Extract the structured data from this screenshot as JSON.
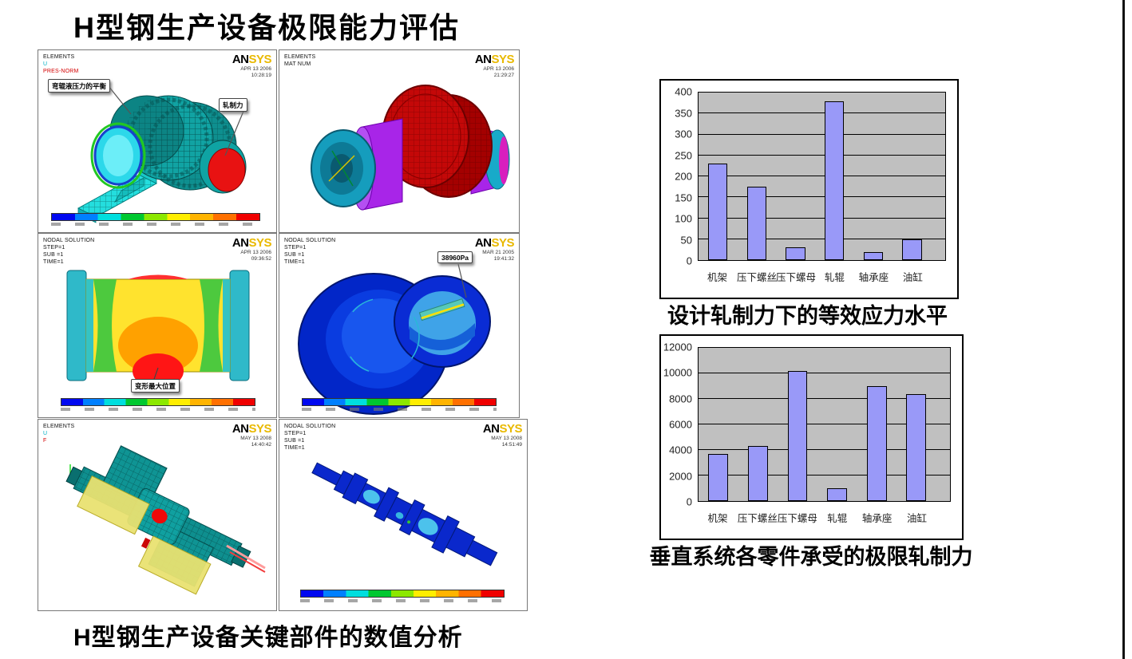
{
  "page": {
    "title": "H型钢生产设备极限能力评估",
    "bottom_caption": "H型钢生产设备关键部件的数值分析"
  },
  "panels": [
    {
      "header_lines": [
        "ELEMENTS",
        "U",
        "PRES-NORM"
      ],
      "logo_an": "AN",
      "logo_sys": "SYS",
      "date": "APR 13 2006",
      "time": "10:28:19",
      "callout_left": "弯辊液压力的平衡",
      "callout_right": "轧制力"
    },
    {
      "header_lines": [
        "ELEMENTS",
        "MAT NUM"
      ],
      "logo_an": "AN",
      "logo_sys": "SYS",
      "date": "APR 13 2006",
      "time": "21:29:27"
    },
    {
      "header_lines": [
        "NODAL SOLUTION",
        "STEP=1",
        "SUB =1",
        "TIME=1"
      ],
      "logo_an": "AN",
      "logo_sys": "SYS",
      "date": "APR 13 2006",
      "time": "09:36:52",
      "callout": "变形最大位置"
    },
    {
      "header_lines": [
        "NODAL SOLUTION",
        "STEP=1",
        "SUB =1",
        "TIME=1"
      ],
      "logo_an": "AN",
      "logo_sys": "SYS",
      "date": "MAR 21 2005",
      "time": "19:41:32",
      "callout": "38960Pa"
    },
    {
      "header_lines": [
        "ELEMENTS",
        "U",
        "F"
      ],
      "logo_an": "AN",
      "logo_sys": "SYS",
      "date": "MAY 13 2008",
      "time": "14:40:42"
    },
    {
      "header_lines": [
        "NODAL SOLUTION",
        "STEP=1",
        "SUB =1",
        "TIME=1"
      ],
      "logo_an": "AN",
      "logo_sys": "SYS",
      "date": "MAY 13 2008",
      "time": "14:51:49"
    }
  ],
  "chart_data": [
    {
      "type": "bar",
      "caption": "设计轧制力下的等效应力水平",
      "categories": [
        "机架",
        "压下螺丝",
        "压下螺母",
        "轧辊",
        "轴承座",
        "油缸"
      ],
      "values": [
        230,
        175,
        30,
        380,
        20,
        50
      ],
      "title": "",
      "xlabel": "",
      "ylabel": "",
      "ylim": [
        0,
        400
      ],
      "ytick_step": 50,
      "grid": true,
      "legend": false,
      "bar_color": "#9999f8",
      "plot_bg": "#c0c0c0"
    },
    {
      "type": "bar",
      "caption": "垂直系统各零件承受的极限轧制力",
      "categories": [
        "机架",
        "压下螺丝",
        "压下螺母",
        "轧辊",
        "轴承座",
        "油缸"
      ],
      "values": [
        3700,
        4300,
        10200,
        1000,
        9000,
        8400
      ],
      "title": "",
      "xlabel": "",
      "ylabel": "",
      "ylim": [
        0,
        12000
      ],
      "ytick_step": 2000,
      "grid": true,
      "legend": false,
      "bar_color": "#9999f8",
      "plot_bg": "#c0c0c0"
    }
  ]
}
